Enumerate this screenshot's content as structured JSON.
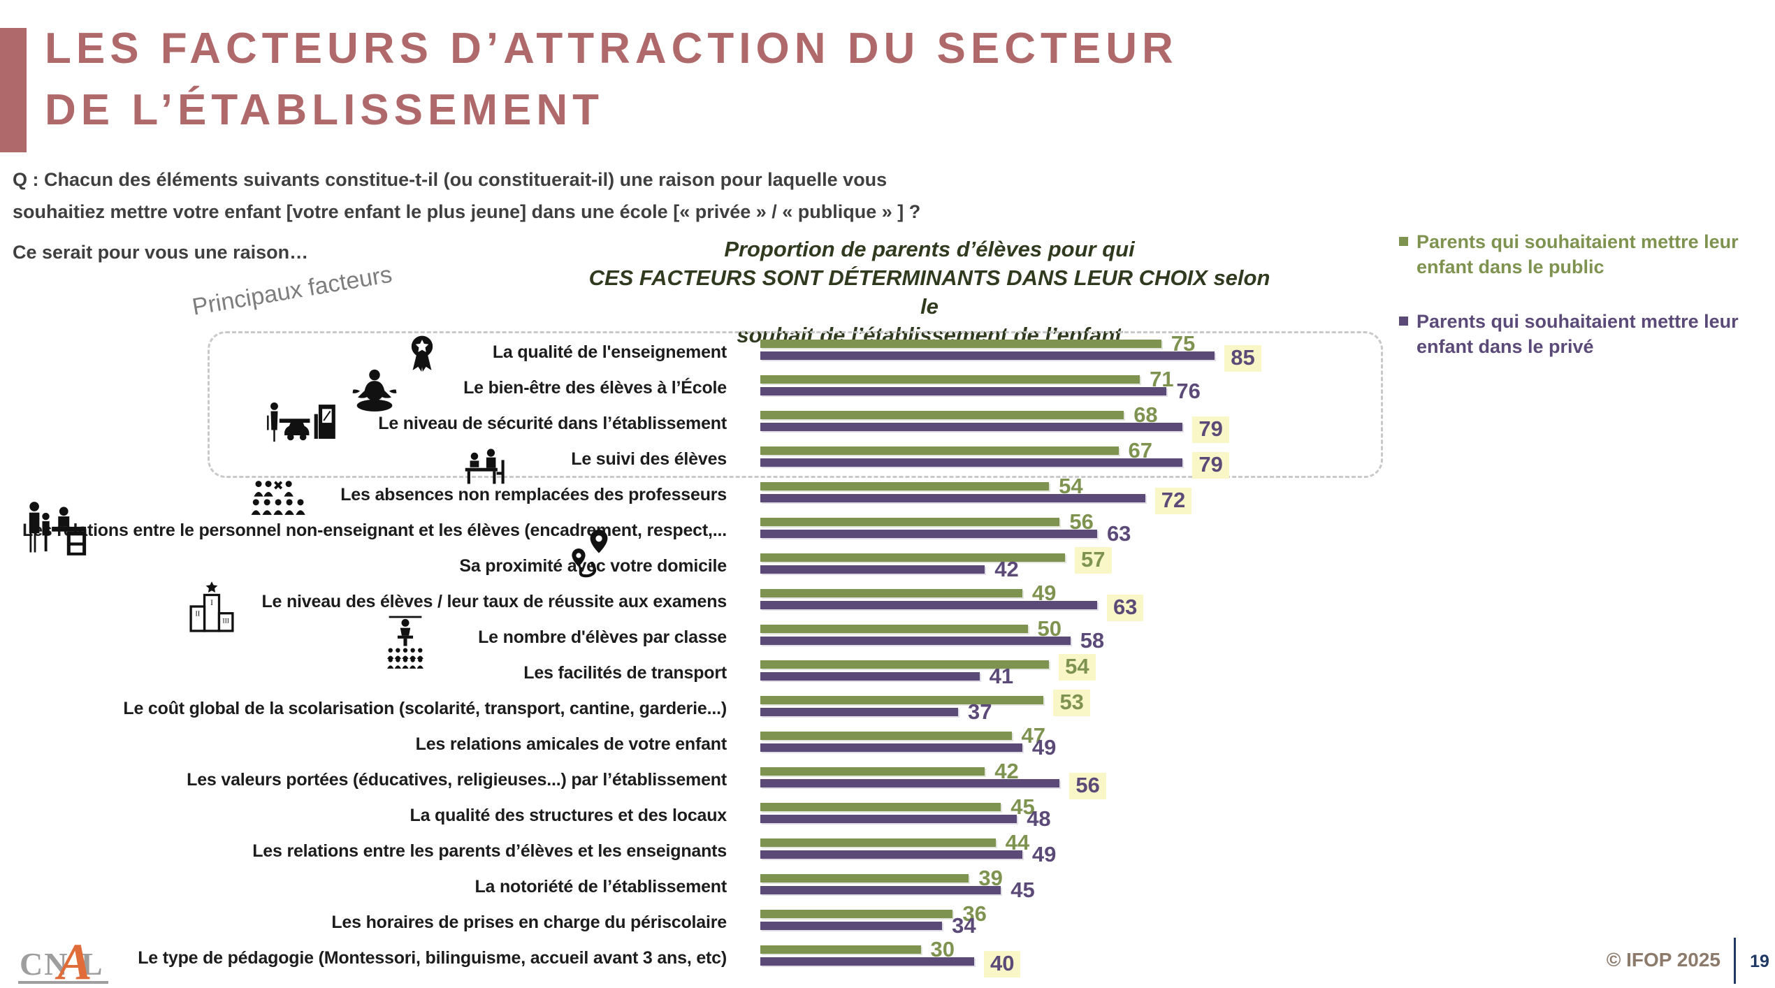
{
  "slide": {
    "title_line1": "LES FACTEURS D’ATTRACTION DU SECTEUR",
    "title_line2": "DE L’ÉTABLISSEMENT",
    "question_line1": "Q : Chacun des éléments suivants constitue-t-il (ou constituerait-il) une raison pour laquelle vous",
    "question_line2": "souhaitiez mettre votre enfant [votre enfant le plus jeune] dans une école [« privée » / « publique » ] ?",
    "question_line3": "Ce serait pour vous une raison…",
    "footer_copyright": "© IFOP 2025",
    "page_number": "19",
    "logo": {
      "part1": "CN",
      "part2": "A",
      "part3": "L"
    }
  },
  "colors": {
    "accent_rose": "#b0696b",
    "public_green": "#7f9350",
    "prive_purple": "#5b4a78",
    "highlight_yellow": "#f9f6c8",
    "title_olive": "#2f3a1e",
    "footer_navy": "#1f3864",
    "logo_orange": "#e06c3a"
  },
  "chart_data": {
    "type": "bar",
    "orientation": "horizontal",
    "title_lines": [
      "Proportion de parents d’élèves pour qui",
      "CES FACTEURS SONT DÉTERMINANTS DANS LEUR CHOIX selon le",
      "souhait de l’établissement de l’enfant"
    ],
    "group_label": "Principaux facteurs",
    "unit": "%",
    "xlim": [
      0,
      100
    ],
    "grid": false,
    "legend_position": "right",
    "categories": [
      "La qualité de l'enseignement",
      "Le bien-être des élèves à l’École",
      "Le niveau de sécurité dans l’établissement",
      "Le suivi des élèves",
      "Les absences non remplacées des professeurs",
      "Les relations entre le personnel non-enseignant et les élèves (encadrement, respect,...",
      "Sa proximité avec votre domicile",
      "Le niveau des élèves / leur taux de réussite aux examens",
      "Le nombre d'élèves par classe",
      "Les facilités de transport",
      "Le coût global de la scolarisation (scolarité, transport, cantine, garderie...)",
      "Les relations amicales de votre enfant",
      "Les valeurs portées (éducatives, religieuses...) par l’établissement",
      "La qualité des structures et des locaux",
      "Les relations entre les parents d’élèves et les enseignants",
      "La notoriété de l’établissement",
      "Les horaires de prises en charge du périscolaire",
      "Le type de pédagogie (Montessori, bilinguisme, accueil avant 3 ans, etc)"
    ],
    "series": [
      {
        "name": "Parents qui souhaitaient mettre leur enfant dans le public",
        "color": "#7f9350",
        "values": [
          75,
          71,
          68,
          67,
          54,
          56,
          57,
          49,
          50,
          54,
          53,
          47,
          42,
          45,
          44,
          39,
          36,
          30
        ]
      },
      {
        "name": "Parents qui souhaitaient mettre leur enfant dans le privé",
        "color": "#5b4a78",
        "values": [
          85,
          76,
          79,
          79,
          72,
          63,
          42,
          63,
          58,
          41,
          37,
          49,
          56,
          48,
          49,
          45,
          34,
          40
        ]
      }
    ],
    "highlighted_value": [
      "prive",
      null,
      "prive",
      "prive",
      "prive",
      null,
      "public",
      "prive",
      null,
      "public",
      "public",
      null,
      "prive",
      null,
      null,
      null,
      null,
      "prive"
    ],
    "icons": [
      "medal-icon",
      "meditation-icon",
      "security-gate-icon",
      "student-support-icon",
      "absent-teachers-icon",
      "reception-family-icon",
      "route-icon",
      "podium-icon",
      "classroom-icon"
    ]
  }
}
